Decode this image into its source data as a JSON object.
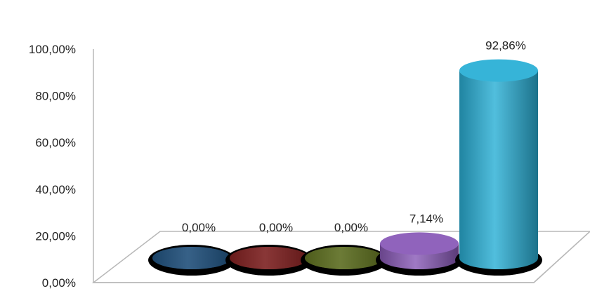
{
  "chart_data": {
    "type": "bar",
    "style": "3d-cylinder",
    "title": "",
    "xlabel": "",
    "ylabel": "",
    "ylim": [
      0,
      100
    ],
    "y_ticks": [
      "0,00%",
      "20,00%",
      "40,00%",
      "60,00%",
      "80,00%",
      "100,00%"
    ],
    "grid": false,
    "legend": "none",
    "categories": [
      "",
      "",
      "",
      "",
      ""
    ],
    "values": [
      0.0,
      0.0,
      0.0,
      7.14,
      92.86
    ],
    "data_labels": [
      "0,00%",
      "0,00%",
      "0,00%",
      "7,14%",
      "92,86%"
    ],
    "colors": [
      "#1f4e79",
      "#7b1f1f",
      "#5a6b1e",
      "#8a5bb8",
      "#2bb0d6"
    ]
  }
}
